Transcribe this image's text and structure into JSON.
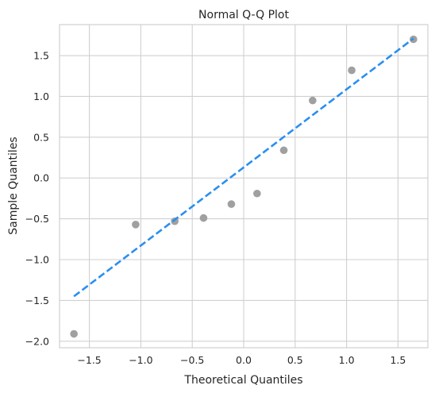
{
  "chart_data": {
    "type": "scatter",
    "title": "Normal Q-Q Plot",
    "xlabel": "Theoretical Quantiles",
    "ylabel": "Sample Quantiles",
    "xlim": [
      -1.79,
      1.79
    ],
    "ylim": [
      -2.08,
      1.88
    ],
    "xticks": [
      -1.5,
      -1.0,
      -0.5,
      0.0,
      0.5,
      1.0,
      1.5
    ],
    "xtick_labels": [
      "−1.5",
      "−1.0",
      "−0.5",
      "0.0",
      "0.5",
      "1.0",
      "1.5"
    ],
    "yticks": [
      -2.0,
      -1.5,
      -1.0,
      -0.5,
      0.0,
      0.5,
      1.0,
      1.5
    ],
    "ytick_labels": [
      "−2.0",
      "−1.5",
      "−1.0",
      "−0.5",
      "0.0",
      "0.5",
      "1.0",
      "1.5"
    ],
    "grid": true,
    "series": [
      {
        "type": "scatter",
        "color": "#a0a0a0",
        "x": [
          -1.65,
          -1.05,
          -0.67,
          -0.39,
          -0.12,
          0.13,
          0.39,
          0.67,
          1.05,
          1.65
        ],
        "y": [
          -1.91,
          -0.57,
          -0.53,
          -0.49,
          -0.32,
          -0.19,
          0.34,
          0.95,
          1.32,
          1.7
        ]
      },
      {
        "type": "line",
        "style": "dashed",
        "color": "#2a8ff0",
        "x": [
          -1.65,
          1.65
        ],
        "y": [
          -1.45,
          1.71
        ]
      }
    ]
  }
}
